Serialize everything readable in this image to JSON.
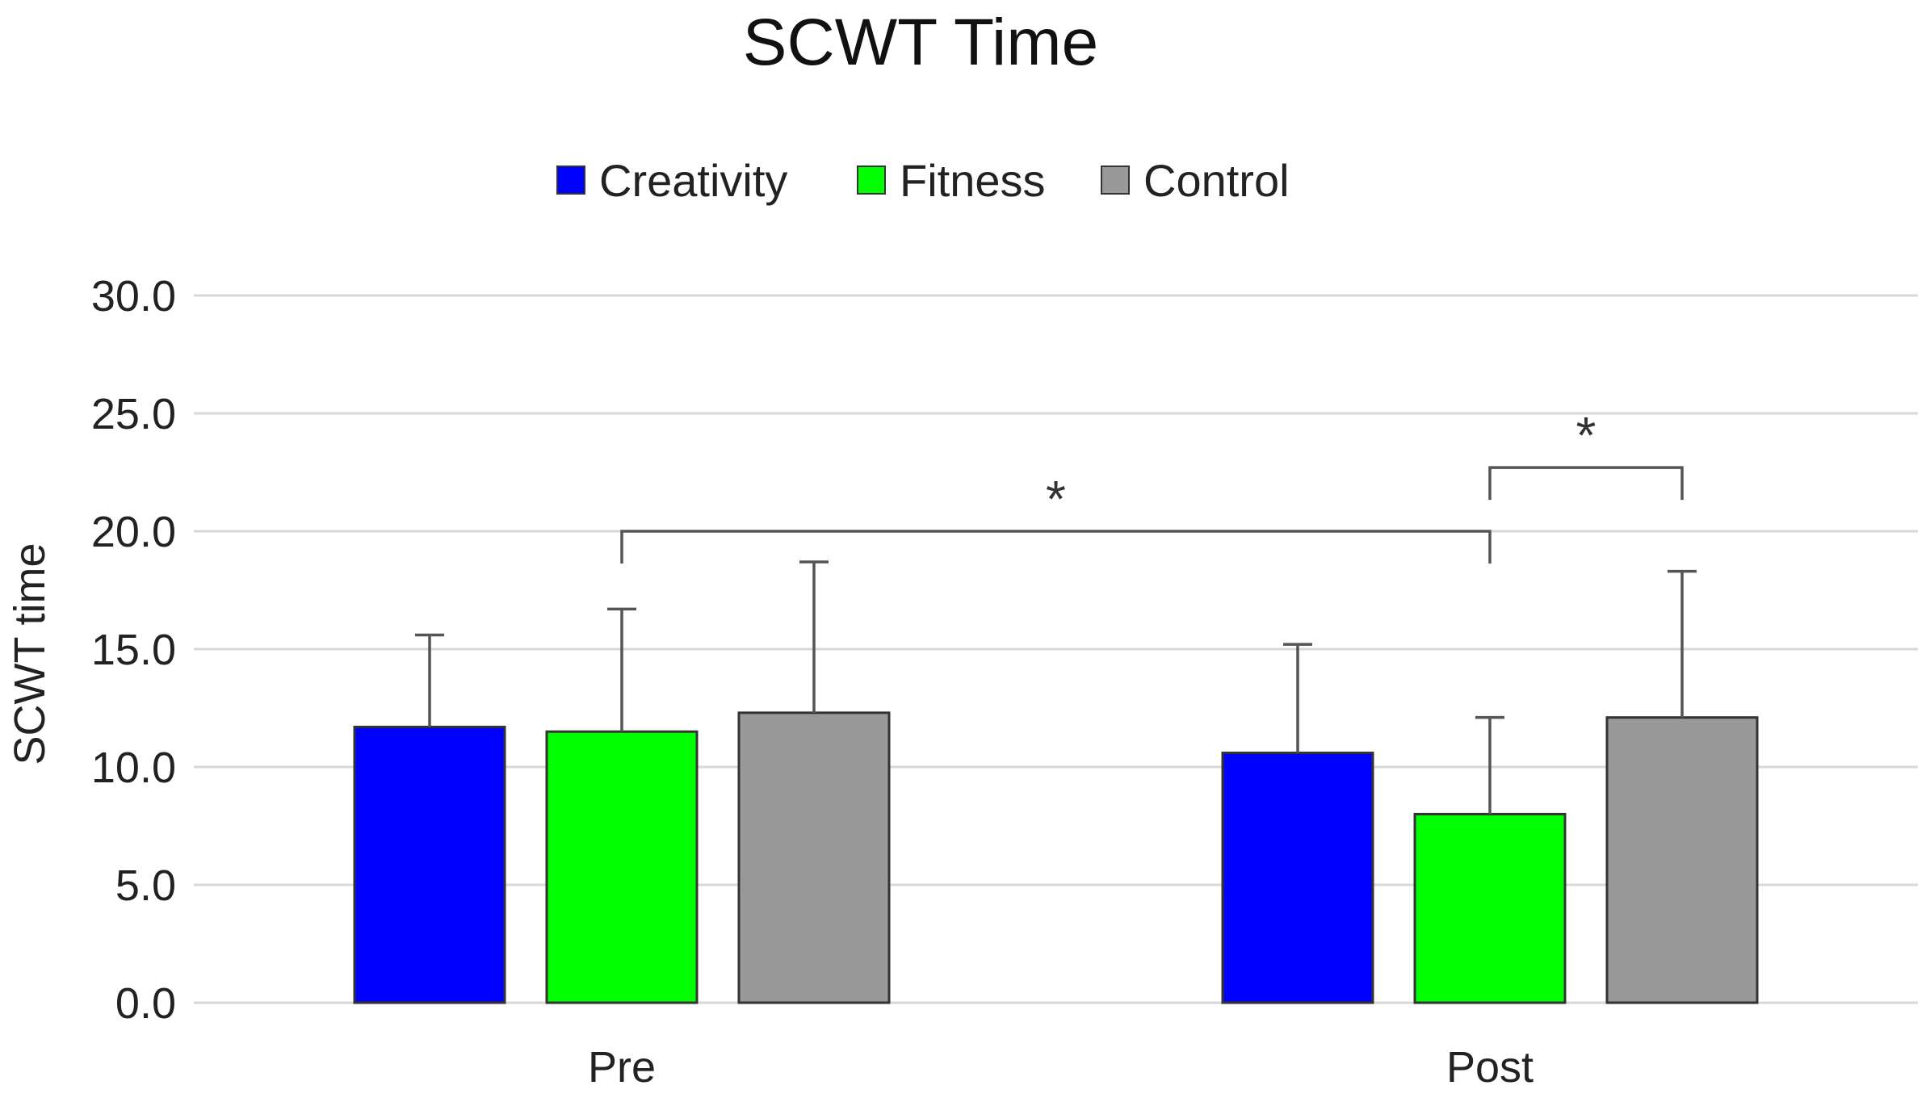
{
  "chart_data": {
    "type": "bar",
    "title": "SCWT Time",
    "xlabel": "",
    "ylabel": "SCWT time",
    "ylim": [
      0,
      30
    ],
    "yticks": [
      0,
      5,
      10,
      15,
      20,
      25,
      30
    ],
    "ytick_labels": [
      "0.0",
      "5.0",
      "10.0",
      "15.0",
      "20.0",
      "25.0",
      "30.0"
    ],
    "grid": true,
    "legend_position": "top-center",
    "categories": [
      "Pre",
      "Post"
    ],
    "series": [
      {
        "name": "Creativity",
        "color": "#0000ff",
        "values": [
          11.7,
          10.6
        ],
        "error": [
          3.9,
          4.6
        ]
      },
      {
        "name": "Fitness",
        "color": "#00ff00",
        "values": [
          11.5,
          8.0
        ],
        "error": [
          5.2,
          4.1
        ]
      },
      {
        "name": "Control",
        "color": "#999999",
        "values": [
          12.3,
          12.1
        ],
        "error": [
          6.4,
          6.2
        ]
      }
    ],
    "annotations": [
      {
        "label": "*",
        "type": "bracket",
        "from": {
          "category": 0,
          "series": 1
        },
        "to": {
          "category": 1,
          "series": 1
        },
        "level": 20.0
      },
      {
        "label": "*",
        "type": "bracket",
        "from": {
          "category": 1,
          "series": 1
        },
        "to": {
          "category": 1,
          "series": 2
        },
        "level": 22.7
      }
    ]
  }
}
